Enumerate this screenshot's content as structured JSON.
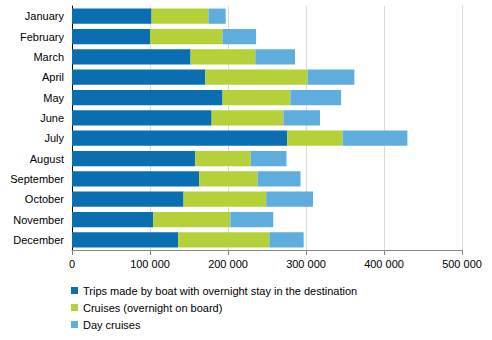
{
  "chart_data": {
    "type": "bar",
    "orientation": "horizontal",
    "stacked": true,
    "grid": true,
    "legend": "bottom",
    "categories": [
      "January",
      "February",
      "March",
      "April",
      "May",
      "June",
      "July",
      "August",
      "September",
      "October",
      "November",
      "December"
    ],
    "series": [
      {
        "name": "Trips made by boat with overnight stay in the destination",
        "color": "#0a6eb0",
        "values": [
          102000,
          100000,
          152000,
          171000,
          193000,
          179000,
          276000,
          158000,
          163000,
          143000,
          104000,
          136000
        ]
      },
      {
        "name": "Cruises (overnight on board)",
        "color": "#b4d13a",
        "values": [
          73000,
          93000,
          83000,
          131000,
          87000,
          92000,
          71000,
          71000,
          75000,
          106000,
          99000,
          117000
        ]
      },
      {
        "name": "Day cruises",
        "color": "#5fadde",
        "values": [
          22000,
          43000,
          51000,
          60000,
          65000,
          47000,
          83000,
          46000,
          55000,
          60000,
          55000,
          44000
        ]
      }
    ],
    "xlim": [
      0,
      500000
    ],
    "xticks": [
      0,
      {
        "value": 100000,
        "label": "100 000"
      },
      {
        "value": 200000,
        "label": "200 000"
      },
      {
        "value": 300000,
        "label": "300 000"
      },
      {
        "value": 400000,
        "label": "400 000"
      },
      {
        "value": 500000,
        "label": "500 000"
      }
    ]
  }
}
